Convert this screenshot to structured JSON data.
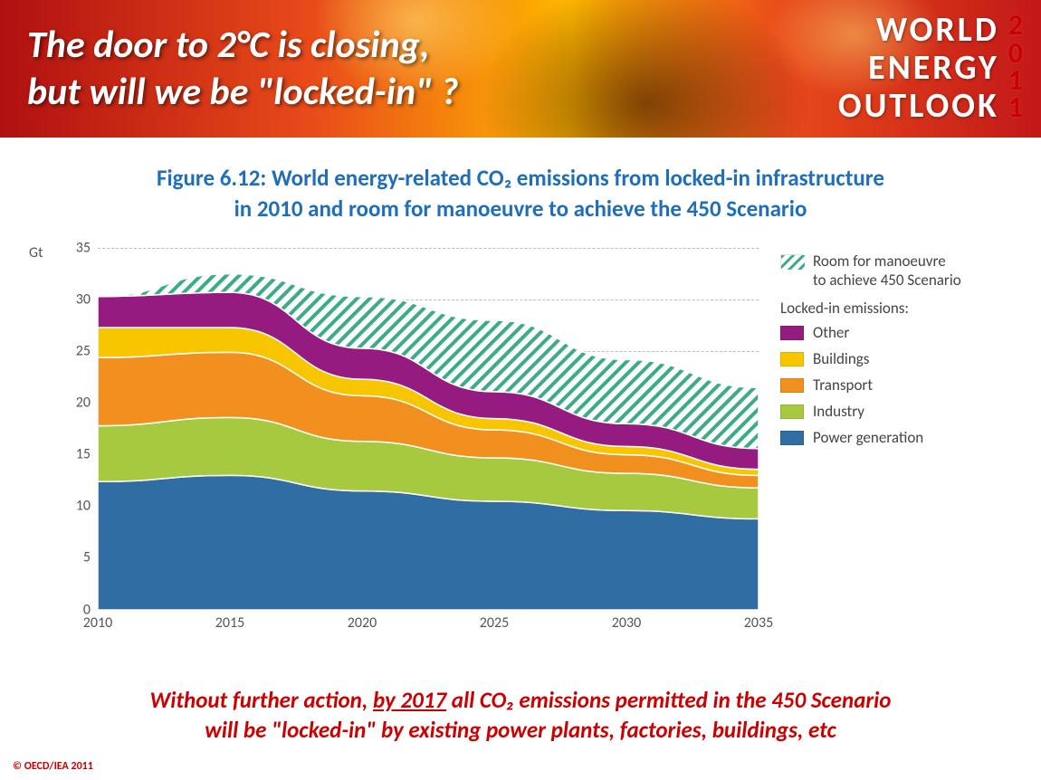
{
  "header": {
    "title_line1": "The door to 2°C is closing,",
    "title_line2": "but will we be \"locked-in\" ?",
    "logo_line1": "WORLD",
    "logo_line2": "ENERGY",
    "logo_line3": "OUTLOOK",
    "year_d1": "2",
    "year_d2": "0",
    "year_d3": "1",
    "year_d4": "1"
  },
  "figure": {
    "title_line1": "Figure 6.12: World energy-related CO₂ emissions from locked-in infrastructure",
    "title_line2": "in 2010 and room for manoeuvre to achieve the 450 Scenario"
  },
  "chart": {
    "type": "stacked-area",
    "y_unit": "Gt",
    "ylim": [
      0,
      35
    ],
    "ytick_step": 5,
    "x_years": [
      2010,
      2015,
      2020,
      2025,
      2030,
      2035
    ],
    "background_color": "#ffffff",
    "grid_color": "#bdbdbd",
    "axis_color": "#666666",
    "label_fontsize": 16,
    "series_order_bottom_to_top": [
      "power_generation",
      "industry",
      "transport",
      "buildings",
      "other",
      "room_for_manoeuvre"
    ],
    "series": {
      "power_generation": {
        "label": "Power generation",
        "color": "#2f6da3",
        "values": [
          12.4,
          13.0,
          11.5,
          10.5,
          9.6,
          8.8
        ]
      },
      "industry": {
        "label": "Industry",
        "color": "#a7c93f",
        "values": [
          5.4,
          5.6,
          4.8,
          4.2,
          3.6,
          3.0
        ]
      },
      "transport": {
        "label": "Transport",
        "color": "#f18f1f",
        "values": [
          6.6,
          6.3,
          4.4,
          2.7,
          1.8,
          1.2
        ]
      },
      "buildings": {
        "label": "Buildings",
        "color": "#f8c600",
        "values": [
          2.9,
          2.4,
          1.6,
          1.1,
          0.8,
          0.6
        ]
      },
      "other": {
        "label": "Other",
        "color": "#951b81",
        "values": [
          3.0,
          3.4,
          3.0,
          2.6,
          2.2,
          2.0
        ]
      },
      "room_for_manoeuvre": {
        "label_line1": "Room for manoeuvre",
        "label_line2": "to achieve 450 Scenario",
        "color": "#3cab87",
        "pattern": "diagonal-hatch",
        "values": [
          0.0,
          1.8,
          5.0,
          6.9,
          6.2,
          5.9
        ]
      }
    },
    "totals_450_scenario": [
      30.3,
      32.5,
      30.3,
      28.0,
      24.2,
      21.5
    ]
  },
  "legend": {
    "group_label": "Locked-in emissions:"
  },
  "caption": {
    "line1_pre": "Without further action, ",
    "line1_u": "by 2017",
    "line1_post": " all CO₂ emissions permitted in the 450 Scenario",
    "line2": "will be \"locked-in\" by existing power plants, factories, buildings, etc"
  },
  "copyright": "© OECD/IEA 2011"
}
